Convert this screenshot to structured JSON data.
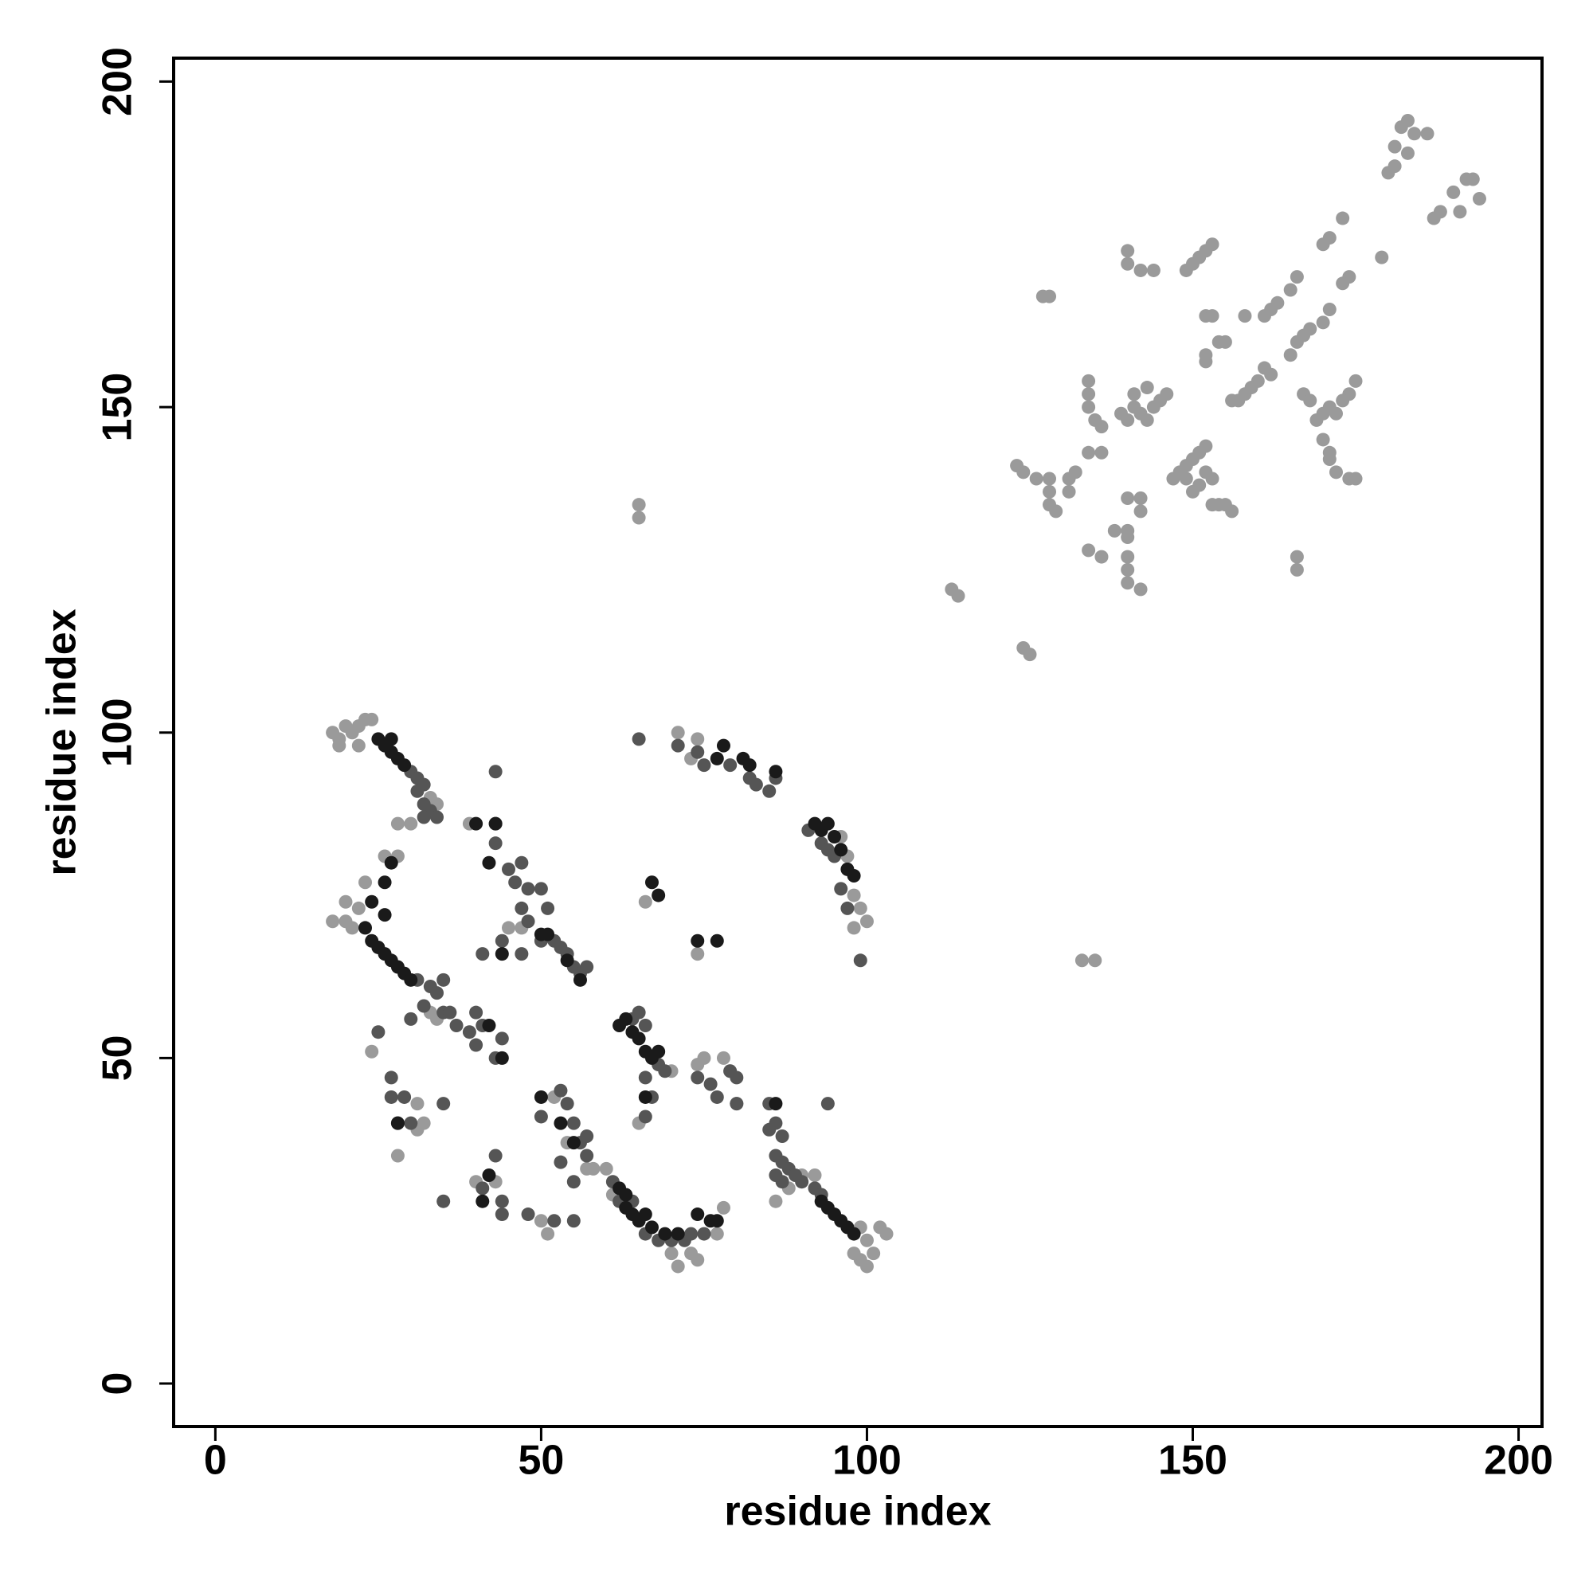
{
  "chart_data": {
    "type": "scatter",
    "xlabel": "residue index",
    "ylabel": "residue index",
    "xlim": [
      -6.4,
      203.6
    ],
    "ylim": [
      -6.6,
      203.6
    ],
    "xticks": [
      0,
      50,
      100,
      150,
      200
    ],
    "yticks": [
      0,
      50,
      100,
      150,
      200
    ],
    "grid": false,
    "series": [
      {
        "color": "#9a9a9a",
        "x": [
          182,
          183,
          184,
          186,
          181,
          183,
          180,
          181,
          192,
          193,
          190,
          194,
          191,
          188,
          187,
          173,
          171,
          170,
          179,
          174,
          173,
          166,
          165,
          163,
          162,
          161,
          171,
          170,
          168,
          167,
          166,
          153,
          152,
          151,
          150,
          149,
          140,
          140,
          142,
          144,
          127,
          128,
          152,
          153,
          154,
          155,
          152,
          152,
          158,
          165,
          160,
          159,
          158,
          157,
          156,
          161,
          162,
          167,
          168,
          174,
          175,
          173,
          171,
          170,
          169,
          172,
          170,
          171,
          171,
          172,
          174,
          175,
          134,
          134,
          134,
          135,
          136,
          141,
          141,
          142,
          143,
          144,
          145,
          146,
          143,
          140,
          139,
          136,
          134,
          149,
          150,
          151,
          152,
          148,
          147,
          149,
          152,
          153,
          151,
          150,
          153,
          154,
          155,
          156,
          123,
          124,
          126,
          128,
          131,
          132,
          131,
          128,
          128,
          129,
          140,
          142,
          142,
          138,
          140,
          140,
          134,
          136,
          140,
          140,
          140,
          142,
          166,
          166,
          65,
          65,
          113,
          114,
          124,
          125,
          133,
          135,
          18,
          19,
          20,
          21,
          22,
          23,
          24,
          19,
          22,
          33,
          34,
          18,
          20,
          21,
          20,
          22,
          23,
          33,
          34,
          30,
          28,
          28,
          26,
          39,
          45,
          47,
          70,
          74,
          75,
          78,
          65,
          80,
          79,
          52,
          54,
          57,
          58,
          60,
          61,
          70,
          71,
          73,
          74,
          77,
          78,
          88,
          90,
          92,
          99,
          100,
          101,
          99,
          100,
          102,
          103,
          98,
          86,
          71,
          74,
          73,
          96,
          97,
          98,
          99,
          100,
          98,
          66,
          74,
          28,
          31,
          31,
          32,
          40,
          43,
          50,
          51,
          24
        ],
        "y": [
          193,
          194,
          192,
          192,
          190,
          189,
          186,
          187,
          185,
          185,
          183,
          182,
          180,
          180,
          179,
          179,
          176,
          175,
          173,
          170,
          169,
          170,
          168,
          166,
          165,
          164,
          165,
          163,
          162,
          161,
          160,
          175,
          174,
          173,
          172,
          171,
          174,
          172,
          171,
          171,
          167,
          167,
          164,
          164,
          160,
          160,
          158,
          157,
          164,
          158,
          154,
          153,
          152,
          151,
          151,
          156,
          155,
          152,
          151,
          152,
          154,
          151,
          150,
          149,
          148,
          149,
          145,
          143,
          142,
          140,
          139,
          139,
          154,
          152,
          150,
          148,
          147,
          152,
          150,
          149,
          148,
          150,
          151,
          152,
          153,
          148,
          149,
          143,
          143,
          141,
          142,
          143,
          144,
          140,
          139,
          139,
          140,
          139,
          138,
          137,
          135,
          135,
          135,
          134,
          141,
          140,
          139,
          139,
          139,
          140,
          137,
          137,
          135,
          134,
          136,
          136,
          134,
          131,
          131,
          130,
          128,
          127,
          127,
          125,
          123,
          122,
          127,
          125,
          135,
          133,
          122,
          121,
          113,
          112,
          65,
          65,
          100,
          99,
          101,
          100,
          101,
          102,
          102,
          98,
          98,
          90,
          89,
          71,
          71,
          70,
          74,
          73,
          77,
          57,
          56,
          86,
          86,
          81,
          81,
          86,
          70,
          70,
          48,
          49,
          50,
          50,
          40,
          43,
          48,
          44,
          37,
          33,
          33,
          33,
          29,
          20,
          18,
          20,
          19,
          23,
          27,
          30,
          32,
          32,
          24,
          22,
          20,
          19,
          18,
          24,
          23,
          20,
          28,
          100,
          99,
          96,
          84,
          81,
          75,
          73,
          71,
          70,
          74,
          66,
          35,
          39,
          43,
          40,
          31,
          31,
          25,
          23,
          51
        ]
      },
      {
        "color": "#555555",
        "x": [
          30,
          31,
          32,
          31,
          32,
          33,
          34,
          32,
          31,
          33,
          34,
          35,
          32,
          30,
          35,
          36,
          37,
          39,
          43,
          43,
          43,
          45,
          47,
          46,
          48,
          50,
          47,
          48,
          51,
          44,
          41,
          47,
          50,
          52,
          53,
          54,
          55,
          56,
          57,
          64,
          65,
          66,
          68,
          69,
          66,
          67,
          66,
          74,
          76,
          79,
          80,
          77,
          80,
          85,
          86,
          85,
          87,
          50,
          53,
          54,
          55,
          56,
          57,
          57,
          53,
          55,
          61,
          62,
          64,
          66,
          68,
          70,
          72,
          73,
          75,
          86,
          87,
          88,
          89,
          90,
          92,
          93,
          87,
          86,
          94,
          65,
          71,
          74,
          75,
          79,
          82,
          83,
          85,
          86,
          91,
          93,
          94,
          95,
          96,
          97,
          99,
          35,
          41,
          43,
          44,
          44,
          48,
          52,
          55,
          28,
          30,
          29,
          27,
          27,
          25,
          35,
          43,
          40,
          44,
          41,
          40
        ],
        "y": [
          94,
          93,
          92,
          91,
          89,
          88,
          87,
          87,
          62,
          61,
          60,
          62,
          58,
          56,
          57,
          57,
          55,
          54,
          94,
          86,
          83,
          79,
          80,
          77,
          76,
          76,
          73,
          71,
          73,
          68,
          66,
          66,
          68,
          68,
          67,
          66,
          64,
          63,
          64,
          56,
          57,
          55,
          49,
          48,
          41,
          44,
          47,
          47,
          46,
          48,
          47,
          44,
          43,
          43,
          40,
          39,
          38,
          41,
          45,
          43,
          40,
          37,
          38,
          35,
          34,
          31,
          31,
          28,
          28,
          23,
          22,
          22,
          22,
          23,
          23,
          35,
          34,
          33,
          32,
          31,
          30,
          29,
          31,
          32,
          43,
          99,
          98,
          97,
          95,
          95,
          93,
          92,
          91,
          93,
          85,
          83,
          82,
          81,
          76,
          73,
          65,
          28,
          30,
          35,
          28,
          26,
          26,
          25,
          25,
          40,
          40,
          44,
          44,
          47,
          54,
          43,
          50,
          52,
          53,
          55,
          57
        ]
      },
      {
        "color": "#1a1a1a",
        "x": [
          25,
          26,
          27,
          28,
          29,
          27,
          23,
          24,
          25,
          26,
          27,
          28,
          29,
          30,
          24,
          26,
          26,
          27,
          44,
          50,
          51,
          54,
          56,
          40,
          42,
          62,
          63,
          64,
          65,
          66,
          67,
          68,
          66,
          86,
          50,
          53,
          55,
          62,
          63,
          63,
          64,
          65,
          66,
          67,
          69,
          71,
          74,
          76,
          77,
          93,
          94,
          95,
          96,
          97,
          98,
          78,
          77,
          81,
          82,
          86,
          92,
          93,
          94,
          95,
          96,
          97,
          98,
          74,
          77,
          67,
          68,
          41,
          42,
          28,
          43,
          44,
          42
        ],
        "y": [
          99,
          98,
          97,
          96,
          95,
          99,
          70,
          68,
          67,
          66,
          65,
          64,
          63,
          62,
          74,
          72,
          77,
          80,
          66,
          69,
          69,
          65,
          62,
          86,
          80,
          55,
          56,
          54,
          53,
          51,
          50,
          51,
          44,
          43,
          44,
          40,
          37,
          30,
          29,
          27,
          26,
          25,
          26,
          24,
          23,
          23,
          26,
          25,
          25,
          28,
          27,
          26,
          25,
          24,
          23,
          98,
          96,
          96,
          95,
          94,
          86,
          85,
          86,
          84,
          82,
          79,
          78,
          68,
          68,
          77,
          75,
          28,
          32,
          40,
          86,
          50,
          55
        ]
      }
    ]
  }
}
